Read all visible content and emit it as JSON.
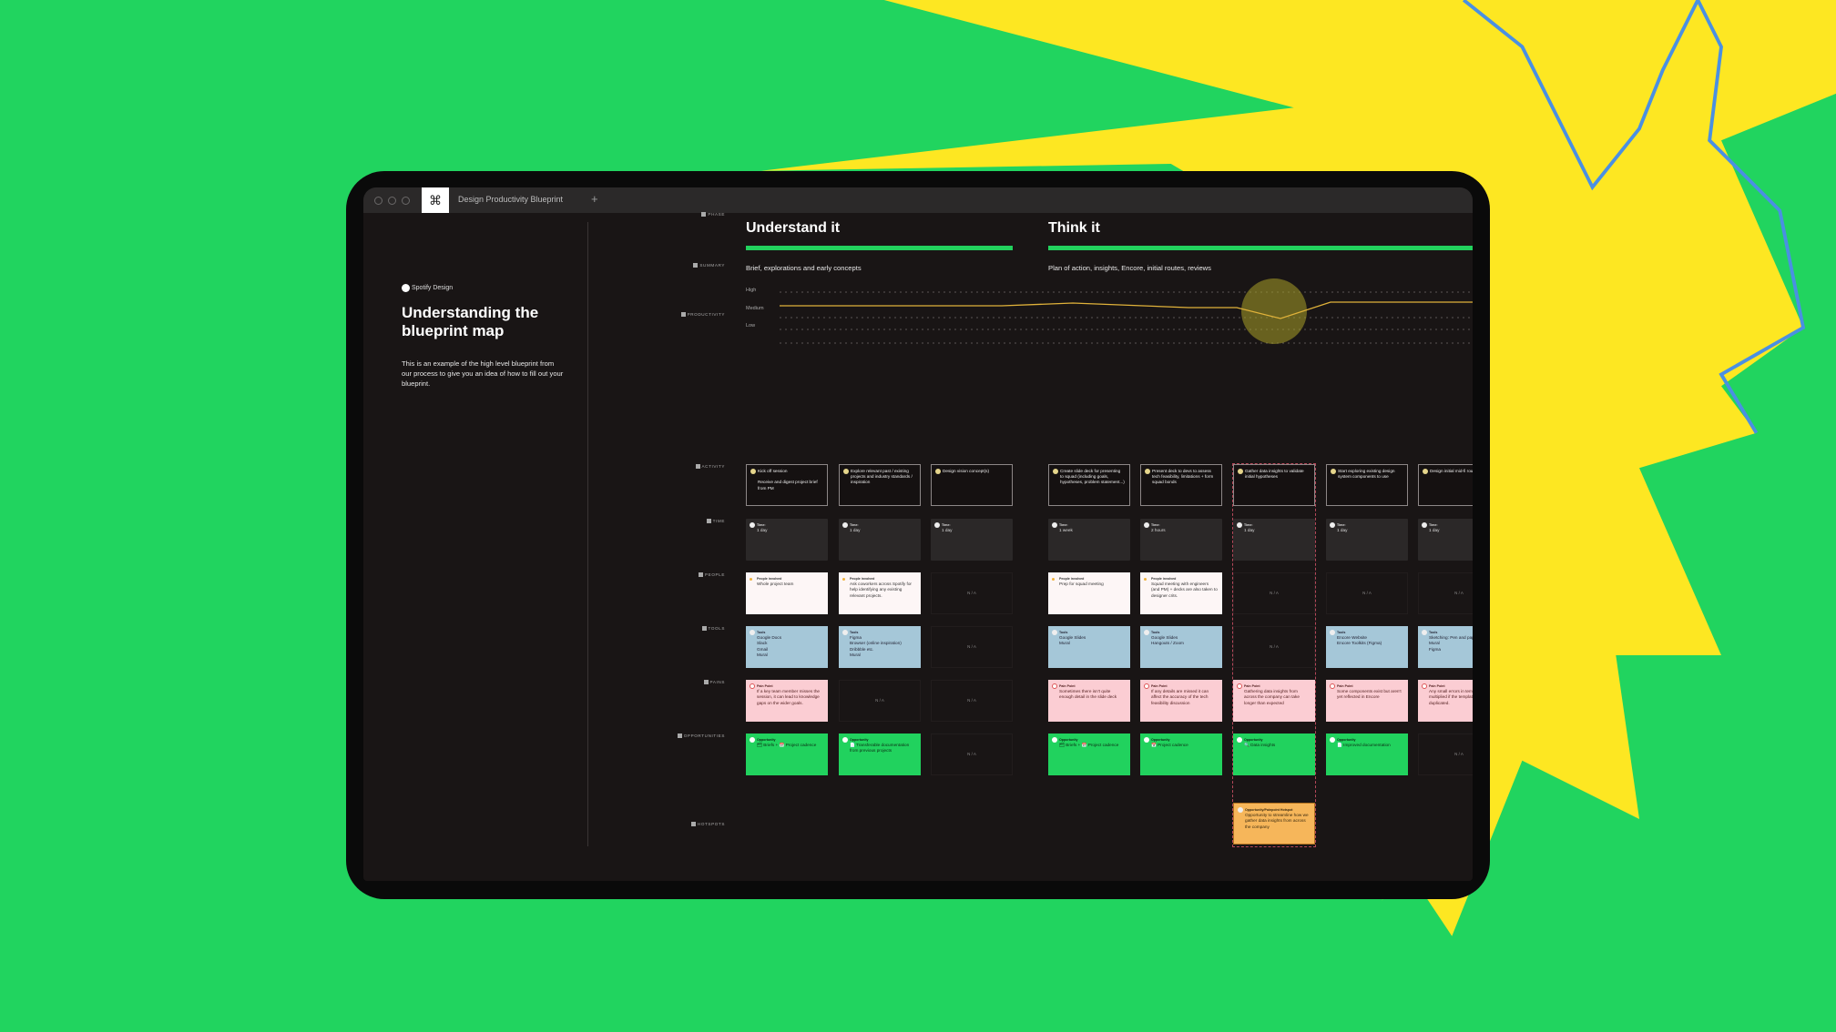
{
  "window": {
    "tab_title": "Design Productivity Blueprint",
    "new_tab": "+",
    "app_icon": "figma-icon"
  },
  "sidebar": {
    "brand": "Spotify Design",
    "title": "Understanding the blueprint map",
    "description": "This is an example of the high level blueprint from our process to give you an idea of how to fill out your blueprint."
  },
  "row_labels": {
    "phase": "PHASE",
    "summary": "SUMMARY",
    "productivity": "PRODUCTIVITY",
    "activity": "ACTIVITY",
    "time": "TIME",
    "people": "PEOPLE",
    "tools": "TOOLS",
    "pains": "PAINS",
    "opportunities": "OPPORTUNITIES",
    "hotspots": "HOTSPOTS"
  },
  "phases": [
    {
      "title": "Understand it",
      "summary": "Brief, explorations and early concepts"
    },
    {
      "title": "Think it",
      "summary": "Plan of action, insights, Encore, initial routes, reviews"
    }
  ],
  "productivity": {
    "levels": [
      "High",
      "Medium",
      "Low"
    ],
    "line_color": "#e0b23a"
  },
  "headers": {
    "time": "Time:",
    "people": "People involved",
    "tools": "Tools",
    "pains": "Pain Point",
    "opps": "Opportunity",
    "hot": "Opportunity/Painpoint Hotspot"
  },
  "na": "N / A",
  "columns": [
    {
      "activity": "Kick off session\n\nReceive and digest project brief from PM",
      "time": "1 day",
      "people": "Whole project team",
      "tools": "Google Docs\nSlack\nGmail\nMural",
      "pains": "If a key team member misses the session, it can lead to knowledge gaps on the wider goals.",
      "opps": "🗂 Briefs + 📅 Project cadence"
    },
    {
      "activity": "Explore relevant past / existing projects and industry standards / inspiration",
      "time": "1 day",
      "people": "Ask coworkers across Spotify for help identifying any existing relevant projects.",
      "tools": "Figma\nBrowser (online inspiration)\nDribbble etc.\nMural",
      "pains": null,
      "opps": "📄 Transferable documentation from previous projects"
    },
    {
      "activity": "Design vision concept(s)",
      "time": "1 day",
      "people": null,
      "tools": null,
      "pains": null,
      "opps": null
    },
    {
      "activity": "Create slide deck for presenting to squad (including goals, hypotheses, problem statement...)",
      "time": "1 week",
      "people": "Prep for squad meeting",
      "tools": "Google Slides\nMural",
      "pains": "Sometimes there isn't quite enough detail in the slide deck",
      "opps": "🗂 Briefs + 📅 Project cadence"
    },
    {
      "activity": "Present deck to devs to assess tech feasibility, limitations + form squad bonds",
      "time": "2 hours",
      "people": "Squad meeting with engineers (and PM) + decks are also taken to designer crits.",
      "tools": "Google Slides\nHangouts / Zoom",
      "pains": "If any details are missed it can affect the accuracy of the tech feasibility discussion",
      "opps": "📅 Project cadence"
    },
    {
      "activity": "Gather data insights to validate initial hypotheses",
      "time": "1 day",
      "people": null,
      "tools": null,
      "pains": "Gathering data insights from across the company can take longer than expected",
      "opps": "🔍 Data insights",
      "hot": "Opportunity to streamline how we gather data insights from across the company"
    },
    {
      "activity": "Start exploring existing design system components to use",
      "time": "1 day",
      "people": null,
      "tools": "Encore Website\nEncore Toolkits (Figma)",
      "pains": "Some components exist but aren't yet reflected in Encore",
      "opps": "📄 Improved documentation"
    },
    {
      "activity": "Design initial mid-fi routes",
      "time": "1 day",
      "people": null,
      "tools": "Sketching: Pen and paper\nMural\nFigma",
      "pains": "Any small errors in templates are multiplied if the template is duplicated.",
      "opps": null
    }
  ],
  "colors": {
    "background": "#21d45f",
    "burst": "#fde722",
    "scribble": "#4a90e2",
    "accent": "#22d15d"
  }
}
